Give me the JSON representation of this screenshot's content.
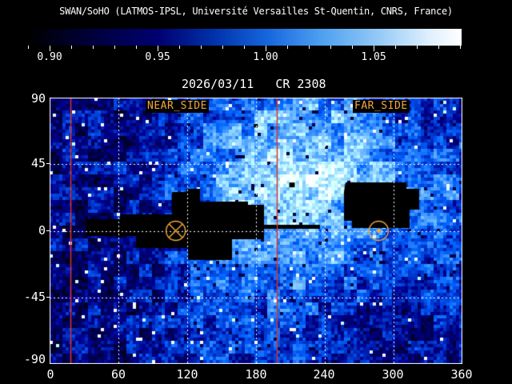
{
  "header": {
    "title": "SWAN/SoHO (LATMOS-IPSL, Université Versailles St-Quentin, CNRS, France)"
  },
  "observation": {
    "date": "2026/03/11",
    "carrington": "CR 2308"
  },
  "colorbar": {
    "tick_labels": [
      "0.90",
      "0.95",
      "1.00",
      "1.05"
    ],
    "min": 0.89,
    "max": 1.09,
    "minor_tick_step": 0.01,
    "major_ticks": [
      0.9,
      0.95,
      1.0,
      1.05
    ],
    "gradient_stops": [
      [
        0,
        "#000000"
      ],
      [
        0.05,
        "#000014"
      ],
      [
        0.18,
        "#000048"
      ],
      [
        0.3,
        "#000070"
      ],
      [
        0.425,
        "#0030a8"
      ],
      [
        0.55,
        "#1565dd"
      ],
      [
        0.675,
        "#4d9ff0"
      ],
      [
        0.8,
        "#8fc7f6"
      ],
      [
        0.92,
        "#dceefd"
      ],
      [
        1,
        "#ffffff"
      ]
    ]
  },
  "colors": {
    "background": "#000000",
    "text": "#ffffff",
    "label_orange": "#f2a93c",
    "marker_orange": "#f2a93c",
    "red_line": "#d63429",
    "grid": "#ffffff",
    "no_data": "#000000"
  },
  "chart_data": {
    "type": "heatmap",
    "title": "SWAN full-sky Lyman-alpha intensity ratio map",
    "x_axis": {
      "min": 0,
      "max": 360,
      "tick_labels": [
        "0",
        "60",
        "120",
        "180",
        "240",
        "300",
        "360"
      ],
      "major_step": 60
    },
    "y_axis": {
      "min": -90,
      "max": 90,
      "tick_labels": [
        "90",
        "45",
        "0",
        "-45",
        "-90"
      ],
      "major_step": 45
    },
    "grid": {
      "dotted_vertical_lon": [
        60,
        120,
        180,
        240,
        300
      ],
      "dotted_horizontal_lat": [
        45,
        0,
        -45
      ]
    },
    "red_meridians_lon": [
      18,
      198
    ],
    "glow_center": {
      "lon": 216,
      "lat": 36
    },
    "annotations": {
      "near_side_label": "NEAR_SIDE",
      "far_side_label": "FAR_SIDE"
    },
    "markers": [
      {
        "name": "near-side-active-region-marker",
        "symbol": "circle-x",
        "lon": 110,
        "lat": 0
      },
      {
        "name": "far-side-active-region-marker",
        "symbol": "circle-dot",
        "lon": 287,
        "lat": 0
      }
    ],
    "no_data_regions": [
      {
        "name": "near-side-mask",
        "polygon_lon_lat": [
          [
            31.4,
            7.8
          ],
          [
            61.4,
            7.8
          ],
          [
            61.4,
            11.1
          ],
          [
            106.7,
            11.1
          ],
          [
            106.7,
            26.2
          ],
          [
            119.3,
            26.2
          ],
          [
            119.3,
            28.4
          ],
          [
            131.2,
            28.4
          ],
          [
            131.2,
            19.7
          ],
          [
            173.0,
            19.7
          ],
          [
            173.0,
            17.6
          ],
          [
            187.0,
            17.6
          ],
          [
            187.0,
            4.1
          ],
          [
            235.8,
            4.1
          ],
          [
            235.8,
            1.4
          ],
          [
            187.0,
            1.4
          ],
          [
            187.0,
            -5.7
          ],
          [
            159.1,
            -5.7
          ],
          [
            159.1,
            -19.7
          ],
          [
            120.7,
            -19.7
          ],
          [
            120.7,
            -11.6
          ],
          [
            75.3,
            -11.6
          ],
          [
            75.3,
            -3.5
          ],
          [
            31.4,
            -3.5
          ]
        ]
      },
      {
        "name": "far-side-mask",
        "polygon_lon_lat": [
          [
            258.1,
            32.7
          ],
          [
            311.2,
            32.7
          ],
          [
            311.2,
            28.4
          ],
          [
            322.3,
            28.4
          ],
          [
            322.3,
            14.3
          ],
          [
            313.9,
            14.3
          ],
          [
            313.9,
            1.9
          ],
          [
            263.7,
            1.9
          ],
          [
            263.7,
            6.8
          ],
          [
            256.7,
            6.8
          ],
          [
            256.7,
            26.2
          ]
        ]
      }
    ],
    "spots": [
      {
        "lon": 211.4,
        "lat": 31.0,
        "dlon": 4.9,
        "dlat": 3.2
      },
      {
        "lon": 179.8,
        "lat": 71.0,
        "dlon": 3.5,
        "dlat": 2.4
      }
    ]
  }
}
